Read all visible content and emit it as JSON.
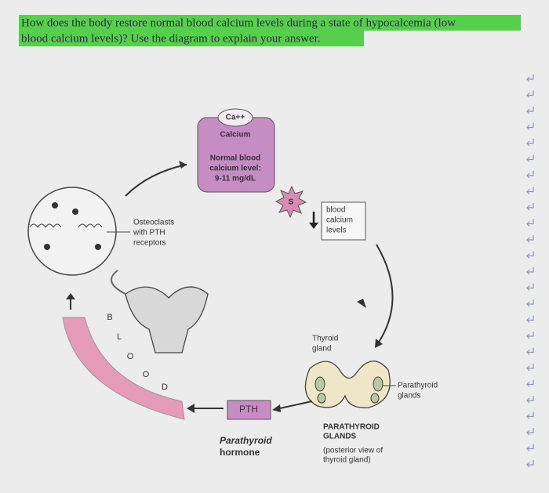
{
  "question": {
    "lines": [
      "How does the body restore normal blood calcium levels during a state of hypocalcemia (low",
      "blood calcium levels)? Use the diagram to explain your answer."
    ]
  },
  "calcium_box": {
    "ion": "Ca++",
    "name": "Calcium",
    "lines": [
      "Normal blood",
      "calcium level:",
      "9-11 mg/dL"
    ]
  },
  "stimulus": "S",
  "blood_calcium": {
    "lines": [
      "blood",
      "calcium",
      "levels"
    ]
  },
  "osteoclasts": {
    "lines": [
      "Osteoclasts",
      "with PTH",
      "receptors"
    ]
  },
  "thyroid_gland": {
    "lines": [
      "Thyroid",
      "gland"
    ]
  },
  "parathyroid_glands": {
    "lines": [
      "Parathyroid",
      "glands"
    ]
  },
  "posterior": {
    "title": [
      "PARATHYROID",
      "GLANDS"
    ],
    "note": [
      "(posterior view of",
      "thyroid gland)"
    ]
  },
  "pth": {
    "abbrev": "PTH",
    "name": [
      "Parathyroid",
      "hormone"
    ]
  },
  "blood_letters": [
    "B",
    "L",
    "O",
    "O",
    "D"
  ]
}
